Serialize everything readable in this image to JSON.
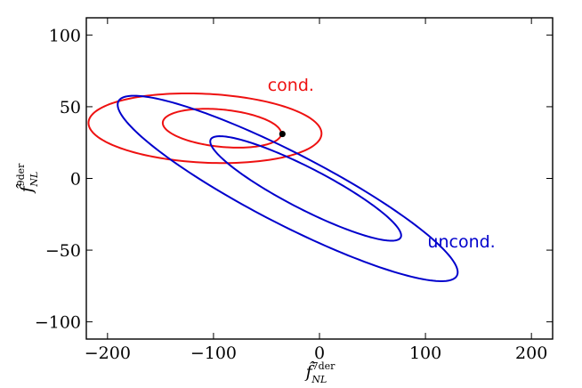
{
  "chart_data": {
    "type": "scatter",
    "title": "",
    "xlabel": {
      "base": "f̂",
      "sup": "7der",
      "sub": "NL"
    },
    "ylabel": {
      "base": "f̂",
      "sup": "9der",
      "sub": "NL"
    },
    "xlim": [
      -220,
      220
    ],
    "ylim": [
      -112,
      112
    ],
    "xticks": [
      -200,
      -100,
      0,
      100,
      200
    ],
    "yticks": [
      -100,
      -50,
      0,
      50,
      100
    ],
    "xtick_labels": [
      "−200",
      "−100",
      "0",
      "100",
      "200"
    ],
    "ytick_labels": [
      "−100",
      "−50",
      "0",
      "50",
      "100"
    ],
    "grid": false,
    "point": {
      "x": -35,
      "y": 31,
      "color": "#000000"
    },
    "series": [
      {
        "name": "cond.",
        "color": "#ee1111",
        "ellipses": [
          {
            "cx": -108,
            "cy": 35,
            "rx": 110,
            "ry": 24,
            "angle": -2
          },
          {
            "cx": -92,
            "cy": 35,
            "rx": 56,
            "ry": 13,
            "angle": -4
          }
        ],
        "label": {
          "text": "cond.",
          "x": -27,
          "y": 61
        }
      },
      {
        "name": "uncond.",
        "color": "#0000cc",
        "ellipses": [
          {
            "cx": -30,
            "cy": -7,
            "rx": 171,
            "ry": 26,
            "angle": -20.5
          },
          {
            "cx": -13,
            "cy": -7,
            "rx": 96,
            "ry": 15,
            "angle": -20.5
          }
        ],
        "label": {
          "text": "uncond.",
          "x": 134,
          "y": -48
        }
      }
    ]
  }
}
